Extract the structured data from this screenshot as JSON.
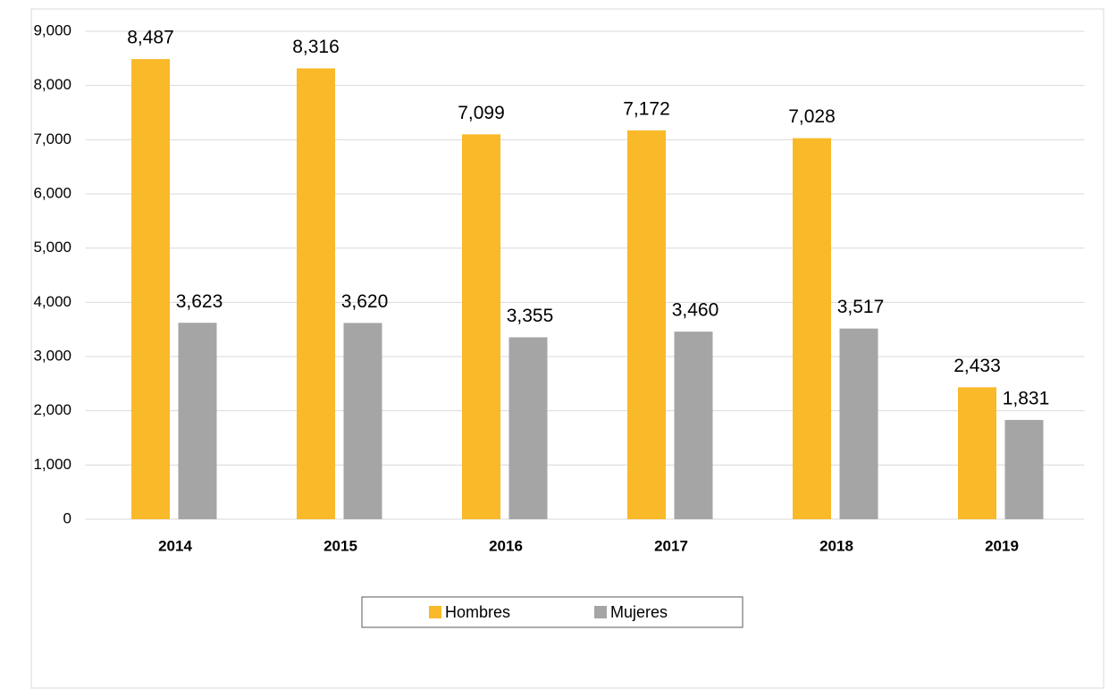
{
  "chart_data": {
    "type": "bar",
    "categories": [
      "2014",
      "2015",
      "2016",
      "2017",
      "2018",
      "2019"
    ],
    "series": [
      {
        "name": "Hombres",
        "color": "#F9B928",
        "values": [
          8487,
          8316,
          7099,
          7172,
          7028,
          2433
        ],
        "value_labels": [
          "8,487",
          "8,316",
          "7,099",
          "7,172",
          "7,028",
          "2,433"
        ]
      },
      {
        "name": "Mujeres",
        "color": "#A5A5A5",
        "values": [
          3623,
          3620,
          3355,
          3460,
          3517,
          1831
        ],
        "value_labels": [
          "3,623",
          "3,620",
          "3,355",
          "3,460",
          "3,517",
          "1,831"
        ]
      }
    ],
    "ylim": [
      0,
      9000
    ],
    "yticks": [
      0,
      {
        "value": 1000,
        "label": "1,000"
      },
      {
        "value": 2000,
        "label": "2,000"
      },
      {
        "value": 3000,
        "label": "3,000"
      },
      {
        "value": 4000,
        "label": "4,000"
      },
      {
        "value": 5000,
        "label": "5,000"
      },
      {
        "value": 6000,
        "label": "6,000"
      },
      {
        "value": 7000,
        "label": "7,000"
      },
      {
        "value": 8000,
        "label": "8,000"
      },
      {
        "value": 9000,
        "label": "9,000"
      }
    ],
    "grid": true,
    "legend": "bottom"
  }
}
